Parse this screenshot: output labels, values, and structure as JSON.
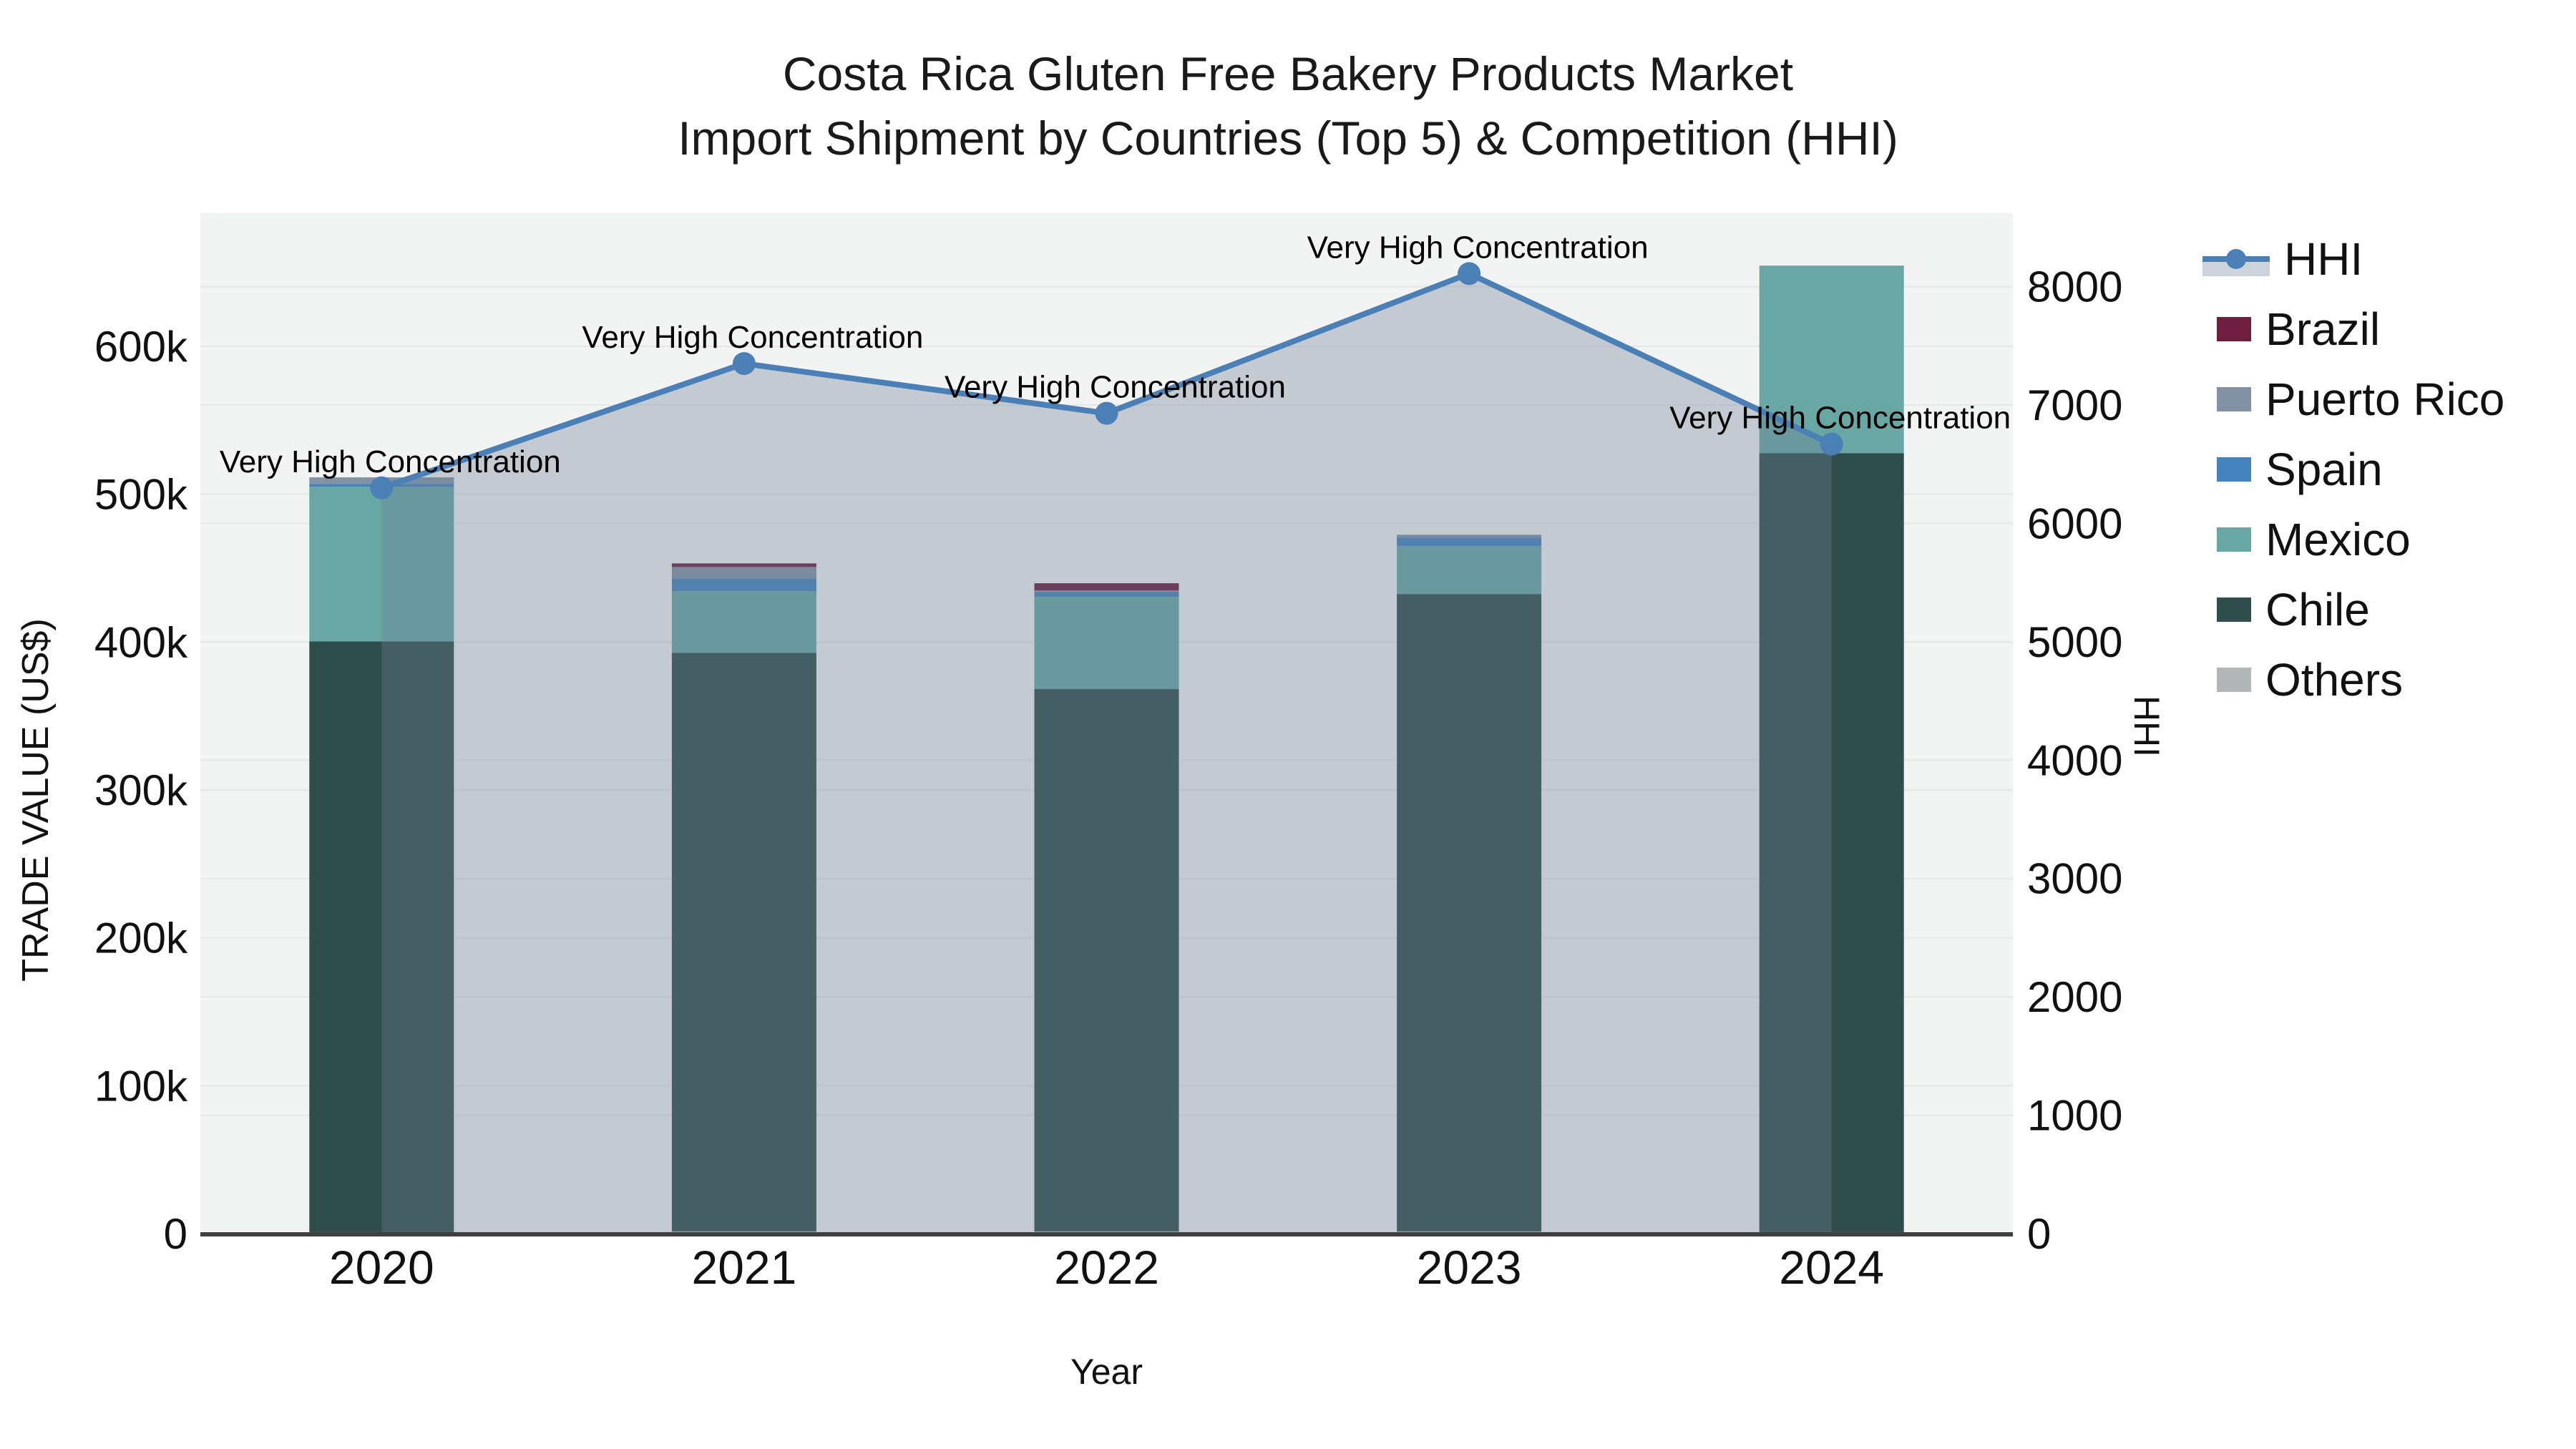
{
  "title": {
    "line1": "Costa Rica Gluten Free Bakery Products Market",
    "line2": "Import Shipment by Countries (Top 5) & Competition (HHI)"
  },
  "axes": {
    "x": {
      "title": "Year",
      "ticks": [
        "2020",
        "2021",
        "2022",
        "2023",
        "2024"
      ]
    },
    "y_left": {
      "title": "TRADE VALUE (US$)",
      "ticks": [
        "0",
        "100k",
        "200k",
        "300k",
        "400k",
        "500k",
        "600k"
      ],
      "tick_values": [
        0,
        100000,
        200000,
        300000,
        400000,
        500000,
        600000
      ],
      "range": [
        0,
        690000
      ]
    },
    "y_right": {
      "title": "HHI",
      "ticks": [
        "0",
        "1000",
        "2000",
        "3000",
        "4000",
        "5000",
        "6000",
        "7000",
        "8000"
      ],
      "tick_values": [
        0,
        1000,
        2000,
        3000,
        4000,
        5000,
        6000,
        7000,
        8000
      ],
      "range": [
        0,
        8620
      ]
    }
  },
  "legend": {
    "items": [
      {
        "label": "HHI",
        "type": "line",
        "color": "#4a80b6"
      },
      {
        "label": "Brazil",
        "type": "box",
        "color": "#6e1e3e"
      },
      {
        "label": "Puerto Rico",
        "type": "box",
        "color": "#8292a4"
      },
      {
        "label": "Spain",
        "type": "box",
        "color": "#4583bd"
      },
      {
        "label": "Mexico",
        "type": "box",
        "color": "#68a7a3"
      },
      {
        "label": "Chile",
        "type": "box",
        "color": "#2e4d4b"
      },
      {
        "label": "Others",
        "type": "box",
        "color": "#b3b6b6"
      }
    ]
  },
  "colors": {
    "plot_bg": "#f2f3f3",
    "grid": "#e4e6e8",
    "axis_line": "#3f3f3f",
    "text": "#111111",
    "hhi_line": "#4a80b6",
    "hhi_area_fill": "rgba(110,125,150,0.35)"
  },
  "chart_data": {
    "type": "bar+line",
    "title": "Costa Rica Gluten Free Bakery Products Market — Import Shipment by Countries (Top 5) & Competition (HHI)",
    "categories": [
      "2020",
      "2021",
      "2022",
      "2023",
      "2024"
    ],
    "bar_value_unit": "US$ trade value",
    "series": [
      {
        "name": "Brazil",
        "color": "#6e1e3e",
        "values": [
          0,
          2400,
          4800,
          0,
          0
        ]
      },
      {
        "name": "Puerto Rico",
        "color": "#8292a4",
        "values": [
          4400,
          7700,
          1000,
          1900,
          0
        ]
      },
      {
        "name": "Spain",
        "color": "#4583bd",
        "values": [
          2000,
          8700,
          3400,
          5800,
          0
        ]
      },
      {
        "name": "Mexico",
        "color": "#68a7a3",
        "values": [
          104500,
          41600,
          62400,
          32400,
          126800
        ]
      },
      {
        "name": "Chile",
        "color": "#2e4d4b",
        "values": [
          399500,
          391300,
          366700,
          431000,
          526800
        ]
      },
      {
        "name": "Others",
        "color": "#b3b6b6",
        "values": [
          1000,
          1500,
          1500,
          1500,
          1000
        ]
      }
    ],
    "stack_order": [
      "Others",
      "Chile",
      "Mexico",
      "Spain",
      "Puerto Rico",
      "Brazil"
    ],
    "stack_totals": [
      511400,
      453200,
      439800,
      472600,
      654600
    ],
    "line_series": {
      "name": "HHI",
      "color": "#4a80b6",
      "values": [
        6300,
        7350,
        6930,
        8110,
        6670
      ],
      "axis": "right",
      "area_to_zero": true
    },
    "annotations": [
      {
        "text": "Very High Concentration",
        "category": "2020"
      },
      {
        "text": "Very High Concentration",
        "category": "2021"
      },
      {
        "text": "Very High Concentration",
        "category": "2022"
      },
      {
        "text": "Very High Concentration",
        "category": "2023"
      },
      {
        "text": "Very High Concentration",
        "category": "2024"
      }
    ],
    "legend_position": "right",
    "grid": true
  }
}
